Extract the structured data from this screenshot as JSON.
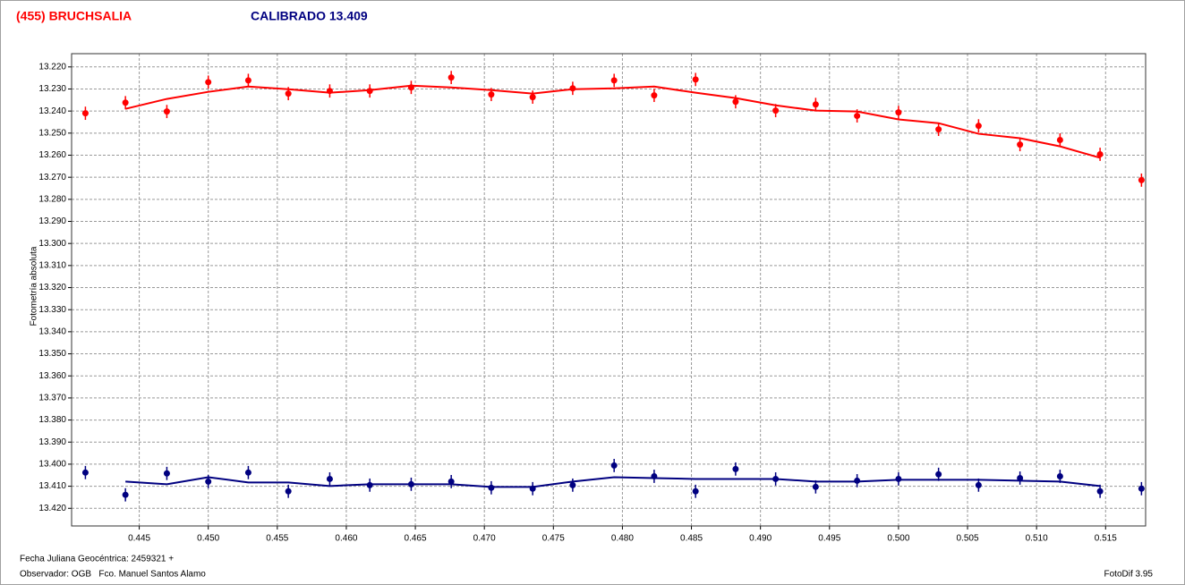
{
  "chart_data": {
    "type": "scatter",
    "y_label": "Fotometría absoluta",
    "footer_date": "Fecha Juliana Geocéntrica: 2459321 +",
    "footer_observer": "Observador: OGB   Fco. Manuel Santos Alamo",
    "footer_software": "FotoDif 3.95",
    "xlim": [
      0.4401,
      0.5179
    ],
    "ylim": [
      13.214,
      13.428
    ],
    "y_inverted": true,
    "grid": true,
    "xticks": [
      0.445,
      {
        "value": 0.45,
        "label": "0.450"
      },
      0.455,
      {
        "value": 0.46,
        "label": "0.460"
      },
      0.465,
      {
        "value": 0.47,
        "label": "0.470"
      },
      0.475,
      {
        "value": 0.48,
        "label": "0.480"
      },
      0.485,
      {
        "value": 0.49,
        "label": "0.490"
      },
      0.495,
      {
        "value": 0.5,
        "label": "0.500"
      },
      0.505,
      {
        "value": 0.51,
        "label": "0.510"
      },
      0.515
    ],
    "yticks": [
      {
        "value": 13.22,
        "label": "13.220"
      },
      {
        "value": 13.23,
        "label": "13.230"
      },
      {
        "value": 13.24,
        "label": "13.240"
      },
      {
        "value": 13.25,
        "label": "13.250"
      },
      {
        "value": 13.26,
        "label": "13.260"
      },
      {
        "value": 13.27,
        "label": "13.270"
      },
      {
        "value": 13.28,
        "label": "13.280"
      },
      {
        "value": 13.29,
        "label": "13.290"
      },
      {
        "value": 13.3,
        "label": "13.300"
      },
      {
        "value": 13.31,
        "label": "13.310"
      },
      {
        "value": 13.32,
        "label": "13.320"
      },
      {
        "value": 13.33,
        "label": "13.330"
      },
      {
        "value": 13.34,
        "label": "13.340"
      },
      {
        "value": 13.35,
        "label": "13.350"
      },
      {
        "value": 13.36,
        "label": "13.360"
      },
      {
        "value": 13.37,
        "label": "13.370"
      },
      {
        "value": 13.38,
        "label": "13.380"
      },
      {
        "value": 13.39,
        "label": "13.390"
      },
      {
        "value": 13.4,
        "label": "13.400"
      },
      {
        "value": 13.41,
        "label": "13.410"
      },
      {
        "value": 13.42,
        "label": "13.420"
      }
    ],
    "series": [
      {
        "name": "(455) BRUCHSALIA",
        "color": "#ff0000",
        "error": 0.003,
        "x": [
          0.4411,
          0.444,
          0.447,
          0.45,
          0.4529,
          0.4558,
          0.4588,
          0.4617,
          0.4647,
          0.4676,
          0.4705,
          0.4735,
          0.4764,
          0.4794,
          0.4823,
          0.4853,
          0.4882,
          0.4911,
          0.494,
          0.497,
          0.5,
          0.5029,
          0.5058,
          0.5088,
          0.5117,
          0.5146,
          0.5176
        ],
        "values": [
          13.241,
          13.2362,
          13.2402,
          13.2269,
          13.2261,
          13.2321,
          13.2309,
          13.2309,
          13.2293,
          13.2248,
          13.2325,
          13.2337,
          13.2297,
          13.2261,
          13.2329,
          13.2257,
          13.2358,
          13.2398,
          13.237,
          13.2422,
          13.2406,
          13.2483,
          13.2467,
          13.2552,
          13.2531,
          13.2596,
          13.2713
        ],
        "fit": {
          "x": [
            0.444,
            0.447,
            0.45,
            0.4529,
            0.4558,
            0.4588,
            0.4617,
            0.4647,
            0.4676,
            0.4705,
            0.4735,
            0.4764,
            0.4794,
            0.4823,
            0.4853,
            0.4882,
            0.4911,
            0.494,
            0.497,
            0.5,
            0.5029,
            0.5058,
            0.5088,
            0.5117,
            0.5146
          ],
          "values": [
            13.239,
            13.2345,
            13.2313,
            13.2289,
            13.2301,
            13.2317,
            13.2305,
            13.2285,
            13.2293,
            13.2305,
            13.2321,
            13.2301,
            13.2297,
            13.2289,
            13.2317,
            13.2341,
            13.2374,
            13.2398,
            13.2402,
            13.2438,
            13.2455,
            13.2503,
            13.2523,
            13.256,
            13.2612
          ]
        }
      },
      {
        "name": "CALIBRADO 13.409",
        "color": "#000080",
        "error": 0.003,
        "x": [
          0.4411,
          0.444,
          0.447,
          0.45,
          0.4529,
          0.4558,
          0.4588,
          0.4617,
          0.4647,
          0.4676,
          0.4705,
          0.4735,
          0.4764,
          0.4794,
          0.4823,
          0.4853,
          0.4882,
          0.4911,
          0.494,
          0.497,
          0.5,
          0.5029,
          0.5058,
          0.5088,
          0.5117,
          0.5146,
          0.5176
        ],
        "values": [
          13.4038,
          13.4139,
          13.4042,
          13.4079,
          13.4038,
          13.4123,
          13.4067,
          13.4095,
          13.4091,
          13.4079,
          13.4107,
          13.4111,
          13.4095,
          13.4006,
          13.4055,
          13.4123,
          13.4022,
          13.4067,
          13.4103,
          13.4075,
          13.4067,
          13.4046,
          13.4095,
          13.4063,
          13.4055,
          13.4123,
          13.4111
        ],
        "fit": {
          "x": [
            0.444,
            0.447,
            0.45,
            0.4529,
            0.4558,
            0.4588,
            0.4617,
            0.4647,
            0.4676,
            0.4705,
            0.4735,
            0.4764,
            0.4794,
            0.4823,
            0.4853,
            0.4882,
            0.4911,
            0.494,
            0.497,
            0.5,
            0.5029,
            0.5058,
            0.5088,
            0.5117,
            0.5146
          ],
          "values": [
            13.4079,
            13.4091,
            13.4059,
            13.4083,
            13.4083,
            13.4099,
            13.4091,
            13.4091,
            13.4091,
            13.4103,
            13.4103,
            13.4079,
            13.4059,
            13.4063,
            13.4067,
            13.4067,
            13.4067,
            13.4079,
            13.4079,
            13.4071,
            13.4071,
            13.4071,
            13.4075,
            13.4079,
            13.4099
          ]
        }
      }
    ]
  }
}
